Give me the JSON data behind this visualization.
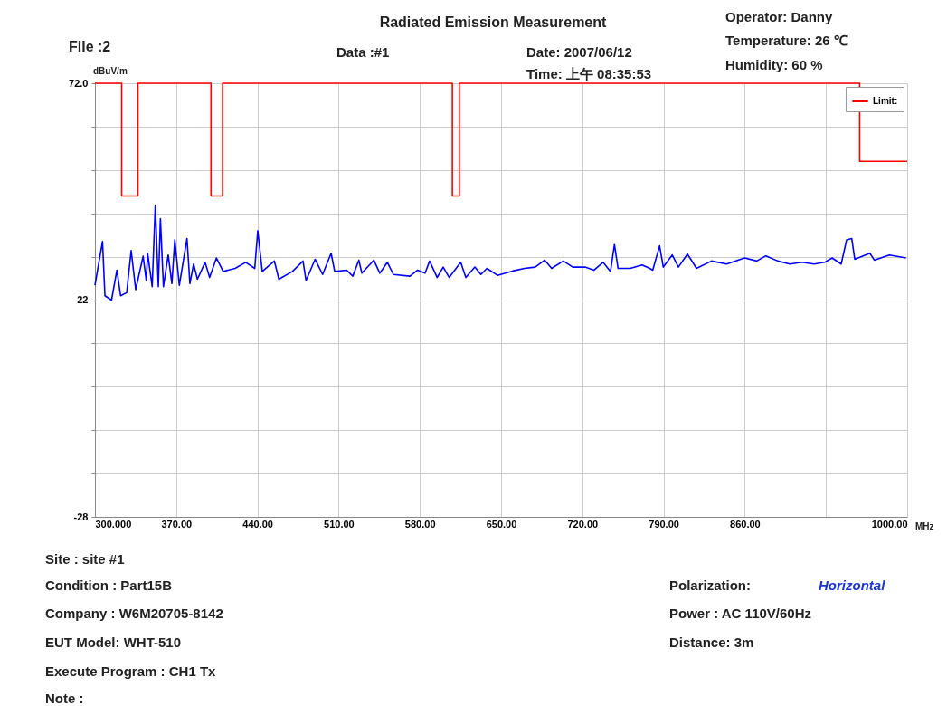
{
  "chart_data": {
    "type": "line",
    "title": "Radiated Emission Measurement",
    "xlabel": "MHz",
    "ylabel": "dBuV/m",
    "annotations": [
      "File :2",
      "Data :#1",
      "Date: 2007/06/12",
      "Time: 上午 08:35:53",
      "Operator: Danny",
      "Temperature: 26 ℃",
      "Humidity: 60 %",
      "Site : site #1",
      "Condition : Part15B",
      "Company : W6M20705-8142",
      "EUT Model: WHT-510",
      "Execute Program : CH1 Tx",
      "Note :",
      "Polarization:",
      "Horizontal",
      "Power : AC 110V/60Hz",
      "Distance: 3m"
    ],
    "xlim": [
      300,
      1000
    ],
    "ylim": [
      -28,
      72
    ],
    "xticks": [
      {
        "value": 300,
        "label": "300.000"
      },
      {
        "value": 370,
        "label": "370.00"
      },
      {
        "value": 440,
        "label": "440.00"
      },
      {
        "value": 510,
        "label": "510.00"
      },
      {
        "value": 580,
        "label": "580.00"
      },
      {
        "value": 650,
        "label": "650.00"
      },
      {
        "value": 720,
        "label": "720.00"
      },
      {
        "value": 790,
        "label": "790.00"
      },
      {
        "value": 860,
        "label": "860.00"
      },
      {
        "value": 930,
        "label": null
      },
      {
        "value": 1000,
        "label": "1000.00"
      }
    ],
    "yticks": [
      {
        "value": 72,
        "label": "72.0"
      },
      {
        "value": 62,
        "label": null
      },
      {
        "value": 52,
        "label": null
      },
      {
        "value": 42,
        "label": null
      },
      {
        "value": 32,
        "label": null
      },
      22,
      {
        "value": 12,
        "label": null
      },
      {
        "value": 2,
        "label": null
      },
      {
        "value": -8,
        "label": null
      },
      {
        "value": -18,
        "label": null
      },
      -28
    ],
    "grid": true,
    "legend": "top right",
    "series": [
      {
        "color": "#0000ff",
        "x": [
          300.0,
          306.5,
          308.6,
          314.3,
          318.9,
          322.1,
          327.3,
          331.2,
          335.1,
          341.5,
          344.2,
          345.4,
          349.3,
          352.0,
          354.6,
          356.4,
          359.0,
          363.1,
          366.3,
          368.8,
          372.7,
          379.3,
          381.8,
          385.0,
          388.3,
          394.9,
          398.8,
          404.7,
          410.5,
          420.8,
          429.9,
          437.7,
          440.3,
          444.2,
          454.6,
          458.5,
          470.2,
          479.3,
          481.9,
          489.7,
          496.2,
          503.5,
          506.6,
          516.9,
          522.2,
          527.4,
          530.0,
          540.3,
          545.5,
          552.0,
          557.2,
          571.5,
          578.0,
          584.5,
          588.4,
          594.9,
          600.1,
          605.3,
          615.2,
          619.6,
          627.4,
          632.6,
          637.8,
          646.9,
          659.9,
          670.3,
          679.4,
          687.6,
          693.6,
          703.6,
          711.8,
          722.3,
          730.1,
          737.9,
          744.3,
          747.7,
          750.8,
          761.3,
          771.6,
          778.1,
          780.7,
          786.6,
          789.8,
          797.5,
          802.8,
          810.6,
          818.4,
          831.4,
          844.3,
          859.9,
          870.4,
          878.2,
          888.5,
          898.9,
          909.3,
          919.7,
          928.8,
          935.3,
          943.1,
          947.8,
          952.2,
          954.8,
          967.8,
          971.7,
          984.6,
          999.0
        ],
        "values": [
          25.4,
          35.5,
          23.0,
          22.0,
          28.9,
          23.0,
          23.7,
          33.4,
          24.4,
          32.1,
          26.5,
          32.8,
          25.1,
          43.9,
          25.1,
          40.8,
          25.1,
          32.4,
          25.8,
          35.9,
          25.4,
          36.2,
          25.8,
          30.3,
          26.8,
          30.7,
          27.2,
          31.7,
          28.6,
          29.3,
          30.7,
          29.3,
          38.0,
          28.6,
          31.0,
          26.8,
          28.6,
          31.0,
          26.5,
          31.4,
          27.9,
          32.8,
          28.6,
          28.9,
          27.5,
          31.2,
          28.2,
          31.2,
          28.2,
          30.7,
          27.9,
          27.5,
          28.9,
          28.2,
          31.0,
          27.2,
          29.6,
          27.2,
          30.7,
          27.2,
          29.6,
          27.9,
          29.3,
          27.7,
          28.7,
          29.3,
          29.6,
          31.2,
          29.3,
          31.0,
          29.6,
          29.6,
          28.9,
          30.7,
          28.6,
          34.8,
          29.3,
          29.3,
          30.1,
          29.3,
          28.9,
          34.5,
          29.6,
          32.4,
          29.6,
          32.6,
          29.3,
          31.0,
          30.3,
          31.7,
          31.0,
          32.2,
          31.0,
          30.3,
          30.7,
          30.3,
          30.7,
          31.7,
          30.3,
          35.9,
          36.2,
          31.4,
          32.8,
          31.2,
          32.4,
          31.7
        ]
      },
      {
        "name": "Limit:",
        "color": "#ff0000",
        "x": [
          300,
          323,
          323,
          337,
          337,
          400,
          400,
          410,
          410,
          608,
          608,
          614,
          614,
          959,
          959,
          1000
        ],
        "values": [
          72,
          72,
          46,
          46,
          72,
          72,
          46,
          46,
          72,
          72,
          46,
          46,
          72,
          72,
          54,
          54
        ]
      }
    ]
  }
}
